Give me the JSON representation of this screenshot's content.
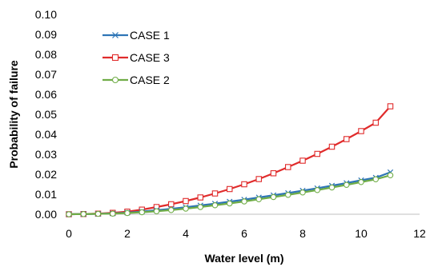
{
  "chart_data": {
    "type": "line",
    "title": "",
    "xlabel": "Water level (m)",
    "ylabel": "Probability of failure",
    "xlim": [
      0,
      12
    ],
    "ylim": [
      0,
      0.1
    ],
    "x_ticks": [
      "0",
      "2",
      "4",
      "6",
      "8",
      "10",
      "12"
    ],
    "y_ticks": [
      "0.00",
      "0.01",
      "0.02",
      "0.03",
      "0.04",
      "0.05",
      "0.06",
      "0.07",
      "0.08",
      "0.09",
      "0.10"
    ],
    "grid": false,
    "legend_position": "top-left",
    "x": [
      0,
      0.5,
      1,
      1.5,
      2,
      2.5,
      3,
      3.5,
      4,
      4.5,
      5,
      5.5,
      6,
      6.5,
      7,
      7.5,
      8,
      8.5,
      9,
      9.5,
      10,
      10.5,
      11
    ],
    "series": [
      {
        "name": "CASE 1",
        "color": "#2e75b6",
        "marker": "x",
        "values": [
          0,
          0.0001,
          0.0002,
          0.0004,
          0.0008,
          0.0013,
          0.002,
          0.0027,
          0.0035,
          0.0044,
          0.0053,
          0.0063,
          0.0073,
          0.0084,
          0.0095,
          0.0106,
          0.0118,
          0.013,
          0.0143,
          0.0156,
          0.017,
          0.0183,
          0.021
        ]
      },
      {
        "name": "CASE 3",
        "color": "#e02b2b",
        "marker": "square",
        "values": [
          0,
          0.0001,
          0.0003,
          0.0007,
          0.0013,
          0.0023,
          0.0036,
          0.005,
          0.0066,
          0.0084,
          0.0104,
          0.0126,
          0.015,
          0.0176,
          0.0205,
          0.0236,
          0.0268,
          0.0302,
          0.0338,
          0.0376,
          0.0416,
          0.0458,
          0.054
        ]
      },
      {
        "name": "CASE 2",
        "color": "#70ad47",
        "marker": "circle",
        "values": [
          0,
          0.0001,
          0.0002,
          0.0003,
          0.0006,
          0.001,
          0.0015,
          0.0021,
          0.0028,
          0.0036,
          0.0045,
          0.0054,
          0.0064,
          0.0075,
          0.0086,
          0.0097,
          0.0109,
          0.0121,
          0.0134,
          0.0147,
          0.0161,
          0.0175,
          0.0195
        ]
      }
    ]
  }
}
